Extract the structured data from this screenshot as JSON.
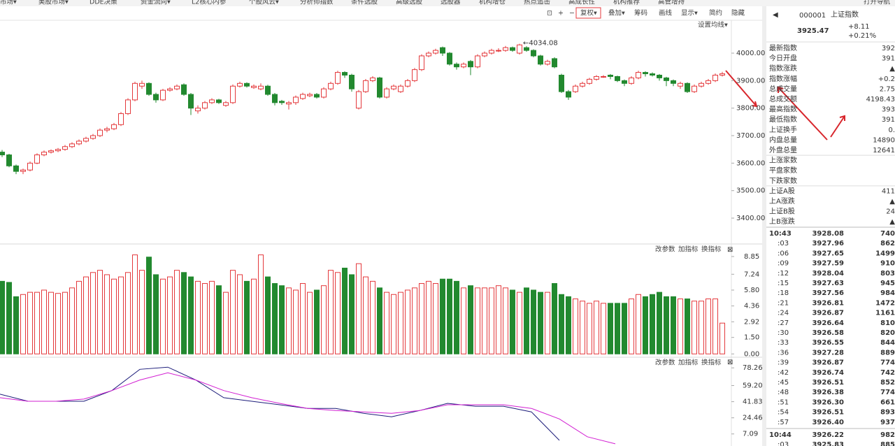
{
  "chart_data": {
    "type": "candlestick",
    "menu": [
      "市场▾",
      "美股市场▾",
      "DDE决策",
      "资金流向▾",
      "L2核心内参",
      "个股风云▾",
      "分析师指数",
      "条件选股",
      "高级选股",
      "选股器",
      "机构增仓",
      "热点追击",
      "高成长性",
      "机构推荐",
      "高管增持"
    ],
    "nav": "打开导航",
    "toolbar": [
      "复权▾",
      "叠加▾",
      "筹码",
      "画线",
      "显示▾",
      "简约",
      "隐藏"
    ],
    "ma_setting": "设置均线▾",
    "pane_buttons": [
      "改参数",
      "加指标",
      "换指标"
    ],
    "high_label": "←4034.08",
    "ylim": [
      3306,
      4117
    ],
    "yticks": [
      {
        "value": 4000,
        "label": "4000.00"
      },
      {
        "value": 3900,
        "label": "3900.00"
      },
      {
        "value": 3800,
        "label": "3800.00"
      },
      {
        "value": 3700,
        "label": "3700.00"
      },
      {
        "value": 3600,
        "label": "3600.00"
      },
      {
        "value": 3500,
        "label": "3500.00"
      },
      {
        "value": 3400,
        "label": "3400.00"
      }
    ],
    "up_color": "#e4393c",
    "down_color": "#22892f",
    "candles": [
      [
        3640,
        3630,
        3648,
        3622
      ],
      [
        3630,
        3590,
        3634,
        3585
      ],
      [
        3590,
        3570,
        3595,
        3560
      ],
      [
        3570,
        3575,
        3580,
        3560
      ],
      [
        3575,
        3600,
        3606,
        3570
      ],
      [
        3600,
        3630,
        3636,
        3596
      ],
      [
        3630,
        3640,
        3646,
        3625
      ],
      [
        3640,
        3645,
        3650,
        3635
      ],
      [
        3645,
        3650,
        3655,
        3640
      ],
      [
        3650,
        3660,
        3666,
        3645
      ],
      [
        3660,
        3670,
        3676,
        3655
      ],
      [
        3670,
        3680,
        3686,
        3665
      ],
      [
        3680,
        3690,
        3696,
        3675
      ],
      [
        3690,
        3700,
        3706,
        3685
      ],
      [
        3700,
        3720,
        3726,
        3695
      ],
      [
        3720,
        3725,
        3732,
        3712
      ],
      [
        3725,
        3740,
        3746,
        3720
      ],
      [
        3740,
        3780,
        3786,
        3735
      ],
      [
        3780,
        3830,
        3836,
        3775
      ],
      [
        3830,
        3890,
        3896,
        3825
      ],
      [
        3880,
        3890,
        3900,
        3870
      ],
      [
        3890,
        3850,
        3894,
        3845
      ],
      [
        3850,
        3830,
        3856,
        3820
      ],
      [
        3830,
        3865,
        3870,
        3826
      ],
      [
        3865,
        3870,
        3876,
        3860
      ],
      [
        3870,
        3880,
        3886,
        3865
      ],
      [
        3885,
        3850,
        3890,
        3845
      ],
      [
        3850,
        3800,
        3855,
        3775
      ],
      [
        3790,
        3800,
        3810,
        3780
      ],
      [
        3800,
        3820,
        3826,
        3795
      ],
      [
        3820,
        3830,
        3836,
        3815
      ],
      [
        3830,
        3820,
        3834,
        3815
      ],
      [
        3810,
        3820,
        3826,
        3805
      ],
      [
        3820,
        3880,
        3886,
        3815
      ],
      [
        3880,
        3890,
        3896,
        3875
      ],
      [
        3890,
        3880,
        3894,
        3875
      ],
      [
        3875,
        3880,
        3886,
        3870
      ],
      [
        3870,
        3880,
        3890,
        3865
      ],
      [
        3880,
        3850,
        3885,
        3845
      ],
      [
        3850,
        3820,
        3855,
        3810
      ],
      [
        3825,
        3820,
        3830,
        3812
      ],
      [
        3815,
        3820,
        3826,
        3795
      ],
      [
        3820,
        3840,
        3846,
        3812
      ],
      [
        3835,
        3850,
        3856,
        3830
      ],
      [
        3845,
        3850,
        3856,
        3840
      ],
      [
        3850,
        3840,
        3855,
        3835
      ],
      [
        3840,
        3870,
        3876,
        3835
      ],
      [
        3870,
        3890,
        3896,
        3865
      ],
      [
        3890,
        3930,
        3936,
        3885
      ],
      [
        3930,
        3920,
        3934,
        3910
      ],
      [
        3920,
        3870,
        3925,
        3860
      ],
      [
        3800,
        3860,
        3866,
        3795
      ],
      [
        3860,
        3900,
        3906,
        3855
      ],
      [
        3900,
        3910,
        3916,
        3895
      ],
      [
        3910,
        3840,
        3914,
        3835
      ],
      [
        3840,
        3870,
        3876,
        3835
      ],
      [
        3870,
        3880,
        3886,
        3865
      ],
      [
        3860,
        3880,
        3886,
        3855
      ],
      [
        3880,
        3900,
        3906,
        3875
      ],
      [
        3900,
        3940,
        3946,
        3895
      ],
      [
        3940,
        3990,
        3996,
        3935
      ],
      [
        3990,
        4000,
        4006,
        3985
      ],
      [
        4000,
        4010,
        4016,
        3995
      ],
      [
        4020,
        4000,
        4024,
        3990
      ],
      [
        4000,
        3960,
        4004,
        3955
      ],
      [
        3960,
        3950,
        3966,
        3940
      ],
      [
        3950,
        3960,
        3966,
        3945
      ],
      [
        3970,
        3950,
        3975,
        3920
      ],
      [
        3950,
        3990,
        3996,
        3945
      ],
      [
        3990,
        4000,
        4006,
        3985
      ],
      [
        4000,
        4010,
        4016,
        3995
      ],
      [
        4010,
        4010,
        4018,
        4004
      ],
      [
        4010,
        4020,
        4026,
        4005
      ],
      [
        4020,
        4010,
        4024,
        4005
      ],
      [
        4000,
        4030,
        4034.08,
        3995
      ],
      [
        4020,
        4010,
        4025,
        4005
      ],
      [
        4010,
        3990,
        4014,
        3985
      ],
      [
        3990,
        3960,
        3994,
        3955
      ],
      [
        3960,
        3970,
        3976,
        3955
      ],
      [
        3980,
        3950,
        3985,
        3945
      ],
      [
        3920,
        3860,
        3925,
        3855
      ],
      [
        3860,
        3840,
        3866,
        3830
      ],
      [
        3860,
        3880,
        3886,
        3855
      ],
      [
        3880,
        3890,
        3896,
        3875
      ],
      [
        3890,
        3905,
        3910,
        3885
      ],
      [
        3905,
        3915,
        3920,
        3900
      ],
      [
        3915,
        3915,
        3920,
        3910
      ],
      [
        3920,
        3915,
        3924,
        3905
      ],
      [
        3915,
        3900,
        3918,
        3895
      ],
      [
        3900,
        3890,
        3904,
        3880
      ],
      [
        3890,
        3910,
        3916,
        3885
      ],
      [
        3910,
        3930,
        3936,
        3905
      ],
      [
        3930,
        3925,
        3934,
        3915
      ],
      [
        3925,
        3920,
        3930,
        3915
      ],
      [
        3920,
        3910,
        3924,
        3900
      ],
      [
        3910,
        3900,
        3914,
        3880
      ],
      [
        3900,
        3890,
        3904,
        3880
      ],
      [
        3880,
        3890,
        3896,
        3870
      ],
      [
        3890,
        3860,
        3894,
        3855
      ],
      [
        3860,
        3880,
        3886,
        3855
      ],
      [
        3880,
        3890,
        3896,
        3875
      ],
      [
        3890,
        3900,
        3906,
        3885
      ],
      [
        3900,
        3920,
        3926,
        3895
      ],
      [
        3920,
        3925,
        3932,
        3915
      ]
    ],
    "volume": {
      "ylim": [
        -0.3,
        9.8
      ],
      "yticks": [
        8.85,
        7.24,
        {
          "value": 5.8,
          "label": "5.80"
        },
        4.36,
        2.92,
        {
          "value": 1.5,
          "label": "1.50"
        },
        {
          "value": 0,
          "label": "0.00"
        }
      ],
      "values": [
        6.6,
        6.5,
        5.2,
        5.4,
        5.6,
        5.6,
        5.8,
        5.6,
        5.5,
        5.6,
        6.0,
        6.6,
        7.0,
        7.4,
        7.6,
        7.2,
        6.8,
        7.0,
        7.4,
        9.0,
        7.6,
        8.8,
        7.2,
        6.8,
        7.0,
        7.6,
        7.4,
        7.0,
        6.6,
        6.4,
        6.6,
        6.2,
        5.6,
        7.6,
        7.2,
        6.6,
        6.8,
        9.0,
        7.0,
        6.4,
        6.2,
        6.0,
        5.8,
        6.4,
        5.6,
        5.8,
        6.2,
        7.6,
        7.4,
        7.8,
        7.2,
        8.2,
        7.0,
        6.6,
        6.0,
        5.6,
        5.4,
        5.6,
        5.8,
        6.0,
        6.4,
        6.6,
        6.4,
        6.8,
        6.8,
        6.6,
        6.0,
        6.2,
        6.0,
        6.0,
        6.0,
        6.2,
        6.0,
        5.8,
        5.6,
        6.0,
        5.8,
        5.6,
        5.6,
        6.4,
        5.4,
        5.2,
        5.0,
        4.8,
        4.6,
        4.8,
        4.6,
        4.6,
        4.6,
        4.6,
        5.0,
        5.4,
        5.2,
        5.4,
        5.6,
        5.2,
        5.2,
        5.0,
        5.0,
        4.8,
        4.8,
        5.0,
        5.0,
        2.8
      ]
    },
    "indicator": {
      "ylim": [
        -5.9,
        88.2
      ],
      "yticks": [
        78.26,
        {
          "value": 59.2,
          "label": "59.20"
        },
        41.83,
        24.46,
        7.09
      ],
      "series": [
        {
          "color": "#1c1c7a",
          "values": [
            49.9,
            42.3,
            42.3,
            42.3,
            53.8,
            76.7,
            79.0,
            65.2,
            46.1,
            42.3,
            38.5,
            34.6,
            34.6,
            29.3,
            25.5,
            32.3,
            40.0,
            36.9,
            36.9,
            30.8,
            0.2,
            null,
            null
          ]
        },
        {
          "color": "#d21fd2",
          "values": [
            46.1,
            42.3,
            42.3,
            44.6,
            53.8,
            65.2,
            72.9,
            65.2,
            53.8,
            46.1,
            40.0,
            34.6,
            32.3,
            30.8,
            29.3,
            32.3,
            38.5,
            38.5,
            38.5,
            34.6,
            23.2,
            4.0,
            -3.6
          ]
        }
      ]
    }
  },
  "quote": {
    "code": "000001",
    "name": "上证指数",
    "price": "3925.47",
    "change": "+8.11",
    "pct": "+0.21%",
    "rows": [
      {
        "label": "最新指数",
        "value": "392",
        "color": "#e4393c"
      },
      {
        "label": "今日开盘",
        "value": "391",
        "color": "#e4393c"
      },
      {
        "label": "指数涨跌",
        "value": "▲",
        "color": "#e4393c"
      },
      {
        "label": "指数涨幅",
        "value": "+0.2",
        "color": "#e4393c"
      },
      {
        "label": "总成交量",
        "value": "2.75",
        "color": "#333333"
      },
      {
        "label": "总成交额",
        "value": "4198.43",
        "color": "#1f6fbf"
      },
      {
        "label": "最高指数",
        "value": "393",
        "color": "#e4393c"
      },
      {
        "label": "最低指数",
        "value": "391",
        "color": "#22892f"
      },
      {
        "label": "上证换手",
        "value": "0.",
        "color": "#333333"
      },
      {
        "label": "内盘总量",
        "value": "14890",
        "color": "#22892f"
      },
      {
        "label": "外盘总量",
        "value": "12641",
        "color": "#e4393c"
      },
      {
        "label": "上涨家数"
      },
      {
        "label": "平盘家数"
      },
      {
        "label": "下跌家数"
      },
      {
        "label": "上证A股",
        "value": "411",
        "color": "#333333"
      },
      {
        "label": "上A涨跌",
        "value": "▲",
        "color": "#e4393c"
      },
      {
        "label": "上证B股",
        "value": "24",
        "color": "#333333"
      },
      {
        "label": "上B涨跌",
        "value": "▲",
        "color": "#e4393c"
      }
    ],
    "ticks": [
      {
        "time": "10:43",
        "price": "3928.08",
        "volume": "740",
        "color": "#e4393c"
      },
      {
        "time": ":03",
        "price": "3927.96",
        "volume": "862",
        "color": "#22892f"
      },
      {
        "time": ":06",
        "price": "3927.65",
        "volume": "1499",
        "color": "#22892f"
      },
      {
        "time": ":09",
        "price": "3927.59",
        "volume": "910",
        "color": "#22892f"
      },
      {
        "time": ":12",
        "price": "3928.04",
        "volume": "803",
        "color": "#e4393c"
      },
      {
        "time": ":15",
        "price": "3927.63",
        "volume": "945",
        "color": "#22892f"
      },
      {
        "time": ":18",
        "price": "3927.56",
        "volume": "984",
        "color": "#22892f"
      },
      {
        "time": ":21",
        "price": "3926.81",
        "volume": "1472",
        "color": "#22892f"
      },
      {
        "time": ":24",
        "price": "3926.87",
        "volume": "1161",
        "color": "#e4393c"
      },
      {
        "time": ":27",
        "price": "3926.64",
        "volume": "810",
        "color": "#22892f"
      },
      {
        "time": ":30",
        "price": "3926.58",
        "volume": "820",
        "color": "#22892f"
      },
      {
        "time": ":33",
        "price": "3926.55",
        "volume": "844",
        "color": "#22892f"
      },
      {
        "time": ":36",
        "price": "3927.28",
        "volume": "889",
        "color": "#e4393c"
      },
      {
        "time": ":39",
        "price": "3926.87",
        "volume": "774",
        "color": "#22892f"
      },
      {
        "time": ":42",
        "price": "3926.74",
        "volume": "742",
        "color": "#22892f"
      },
      {
        "time": ":45",
        "price": "3926.51",
        "volume": "852",
        "color": "#22892f"
      },
      {
        "time": ":48",
        "price": "3926.38",
        "volume": "774",
        "color": "#22892f"
      },
      {
        "time": ":51",
        "price": "3926.30",
        "volume": "661",
        "color": "#22892f"
      },
      {
        "time": ":54",
        "price": "3926.51",
        "volume": "893",
        "color": "#e4393c"
      },
      {
        "time": ":57",
        "price": "3926.40",
        "volume": "937",
        "color": "#22892f"
      },
      {
        "time": "10:44",
        "price": "3926.22",
        "volume": "982",
        "color": "#22892f"
      },
      {
        "time": ":03",
        "price": "3925.83",
        "volume": "885",
        "color": "#22892f"
      }
    ]
  }
}
